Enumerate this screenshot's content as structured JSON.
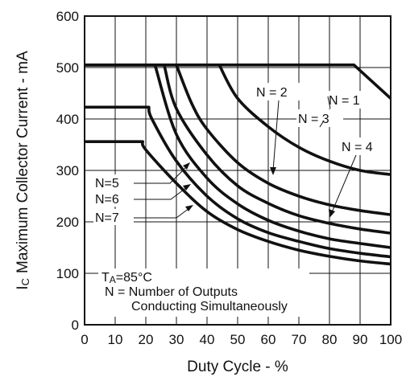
{
  "chart_data": {
    "type": "line",
    "title": "",
    "xlabel": "Duty Cycle - %",
    "ylabel_main": "Maximum Collector Current - mA",
    "ylabel_symbol": "I",
    "ylabel_subscript": "C",
    "xlim": [
      0,
      100
    ],
    "ylim": [
      0,
      600
    ],
    "xticks": [
      0,
      10,
      20,
      30,
      40,
      50,
      60,
      70,
      80,
      90,
      100
    ],
    "yticks": [
      0,
      100,
      200,
      300,
      400,
      500,
      600
    ],
    "grid": true,
    "series": [
      {
        "name": "N = 1",
        "x": [
          0,
          88,
          100
        ],
        "y": [
          505,
          505,
          440
        ]
      },
      {
        "name": "N = 2",
        "x": [
          0,
          44,
          50,
          60,
          70,
          80,
          90,
          100
        ],
        "y": [
          505,
          505,
          440,
          385,
          345,
          318,
          300,
          292
        ]
      },
      {
        "name": "N = 3",
        "x": [
          0,
          30,
          35,
          40,
          50,
          60,
          70,
          80,
          90,
          100
        ],
        "y": [
          505,
          505,
          430,
          380,
          315,
          275,
          250,
          233,
          222,
          214
        ]
      },
      {
        "name": "N = 4",
        "x": [
          0,
          26,
          30,
          40,
          50,
          60,
          70,
          80,
          90,
          100
        ],
        "y": [
          505,
          505,
          420,
          330,
          270,
          236,
          212,
          197,
          186,
          178
        ]
      },
      {
        "name": "N=5",
        "x": [
          0,
          23,
          30,
          40,
          50,
          60,
          70,
          80,
          90,
          100
        ],
        "y": [
          505,
          505,
          370,
          285,
          235,
          203,
          182,
          167,
          158,
          150
        ]
      },
      {
        "name": "N=6",
        "x": [
          0,
          21,
          22,
          30,
          40,
          50,
          60,
          70,
          80,
          90,
          100
        ],
        "y": [
          423,
          423,
          400,
          318,
          250,
          206,
          179,
          162,
          148,
          139,
          132
        ]
      },
      {
        "name": "N=7",
        "x": [
          0,
          19,
          20,
          30,
          40,
          50,
          60,
          70,
          80,
          90,
          100
        ],
        "y": [
          356,
          356,
          340,
          275,
          220,
          185,
          162,
          145,
          133,
          124,
          118
        ]
      }
    ],
    "annotations": {
      "ta_prefix": "T",
      "ta_subscript": "A",
      "ta_value": "=85°C",
      "outputs_line1": "N = Number of Outputs",
      "outputs_line2": "Conducting Simultaneously"
    }
  }
}
